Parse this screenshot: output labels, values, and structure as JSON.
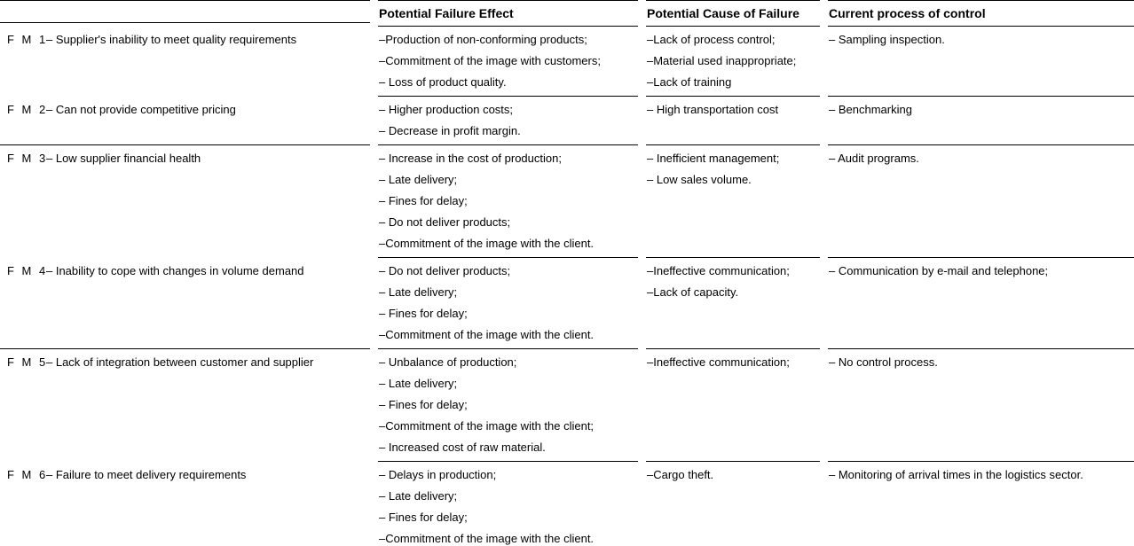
{
  "table": {
    "headers": {
      "effect": "Potential Failure Effect",
      "cause": "Potential Cause of Failure",
      "control": "Current process of control"
    },
    "rows": [
      {
        "id": "F M 1",
        "failure_mode": "– Supplier's inability to meet quality requirements",
        "effects": [
          "–Production of non-conforming products;",
          "–Commitment of the image with customers;",
          "– Loss of product quality."
        ],
        "causes": [
          "–Lack of process control;",
          "–Material used inappropriate;",
          "–Lack of training"
        ],
        "controls": [
          "– Sampling inspection."
        ]
      },
      {
        "id": "F M 2",
        "failure_mode": "– Can not provide competitive pricing",
        "effects": [
          "– Higher production costs;",
          "– Decrease in profit margin."
        ],
        "causes": [
          "– High transportation cost"
        ],
        "controls": [
          "– Benchmarking"
        ]
      },
      {
        "id": "F M 3",
        "failure_mode": "– Low supplier financial health",
        "effects": [
          "– Increase in the cost of production;",
          "– Late delivery;",
          "– Fines for delay;",
          "– Do not deliver products;",
          "–Commitment of the image with the client."
        ],
        "causes": [
          "– Inefficient management;",
          "– Low sales volume."
        ],
        "controls": [
          "– Audit programs."
        ]
      },
      {
        "id": "F M 4",
        "failure_mode": "– Inability to cope with changes in volume demand",
        "effects": [
          "– Do not deliver products;",
          "– Late delivery;",
          "– Fines for delay;",
          "–Commitment of the image with the client."
        ],
        "causes": [
          "–Ineffective communication;",
          "–Lack of capacity."
        ],
        "controls": [
          "– Communication by e-mail and telephone;"
        ]
      },
      {
        "id": "F M 5",
        "failure_mode": "– Lack of integration between customer and supplier",
        "effects": [
          "– Unbalance of production;",
          "– Late delivery;",
          "– Fines for delay;",
          "–Commitment of the image with the client;",
          "– Increased cost of raw material."
        ],
        "causes": [
          "–Ineffective communication;"
        ],
        "controls": [
          "– No control process."
        ]
      },
      {
        "id": "F M 6",
        "failure_mode": "– Failure to meet delivery requirements",
        "effects": [
          "– Delays in production;",
          "– Late delivery;",
          "– Fines for delay;",
          "–Commitment of the image with the client."
        ],
        "causes": [
          "–Cargo theft."
        ],
        "controls": [
          "– Monitoring of arrival times in the logistics sector."
        ]
      }
    ]
  }
}
